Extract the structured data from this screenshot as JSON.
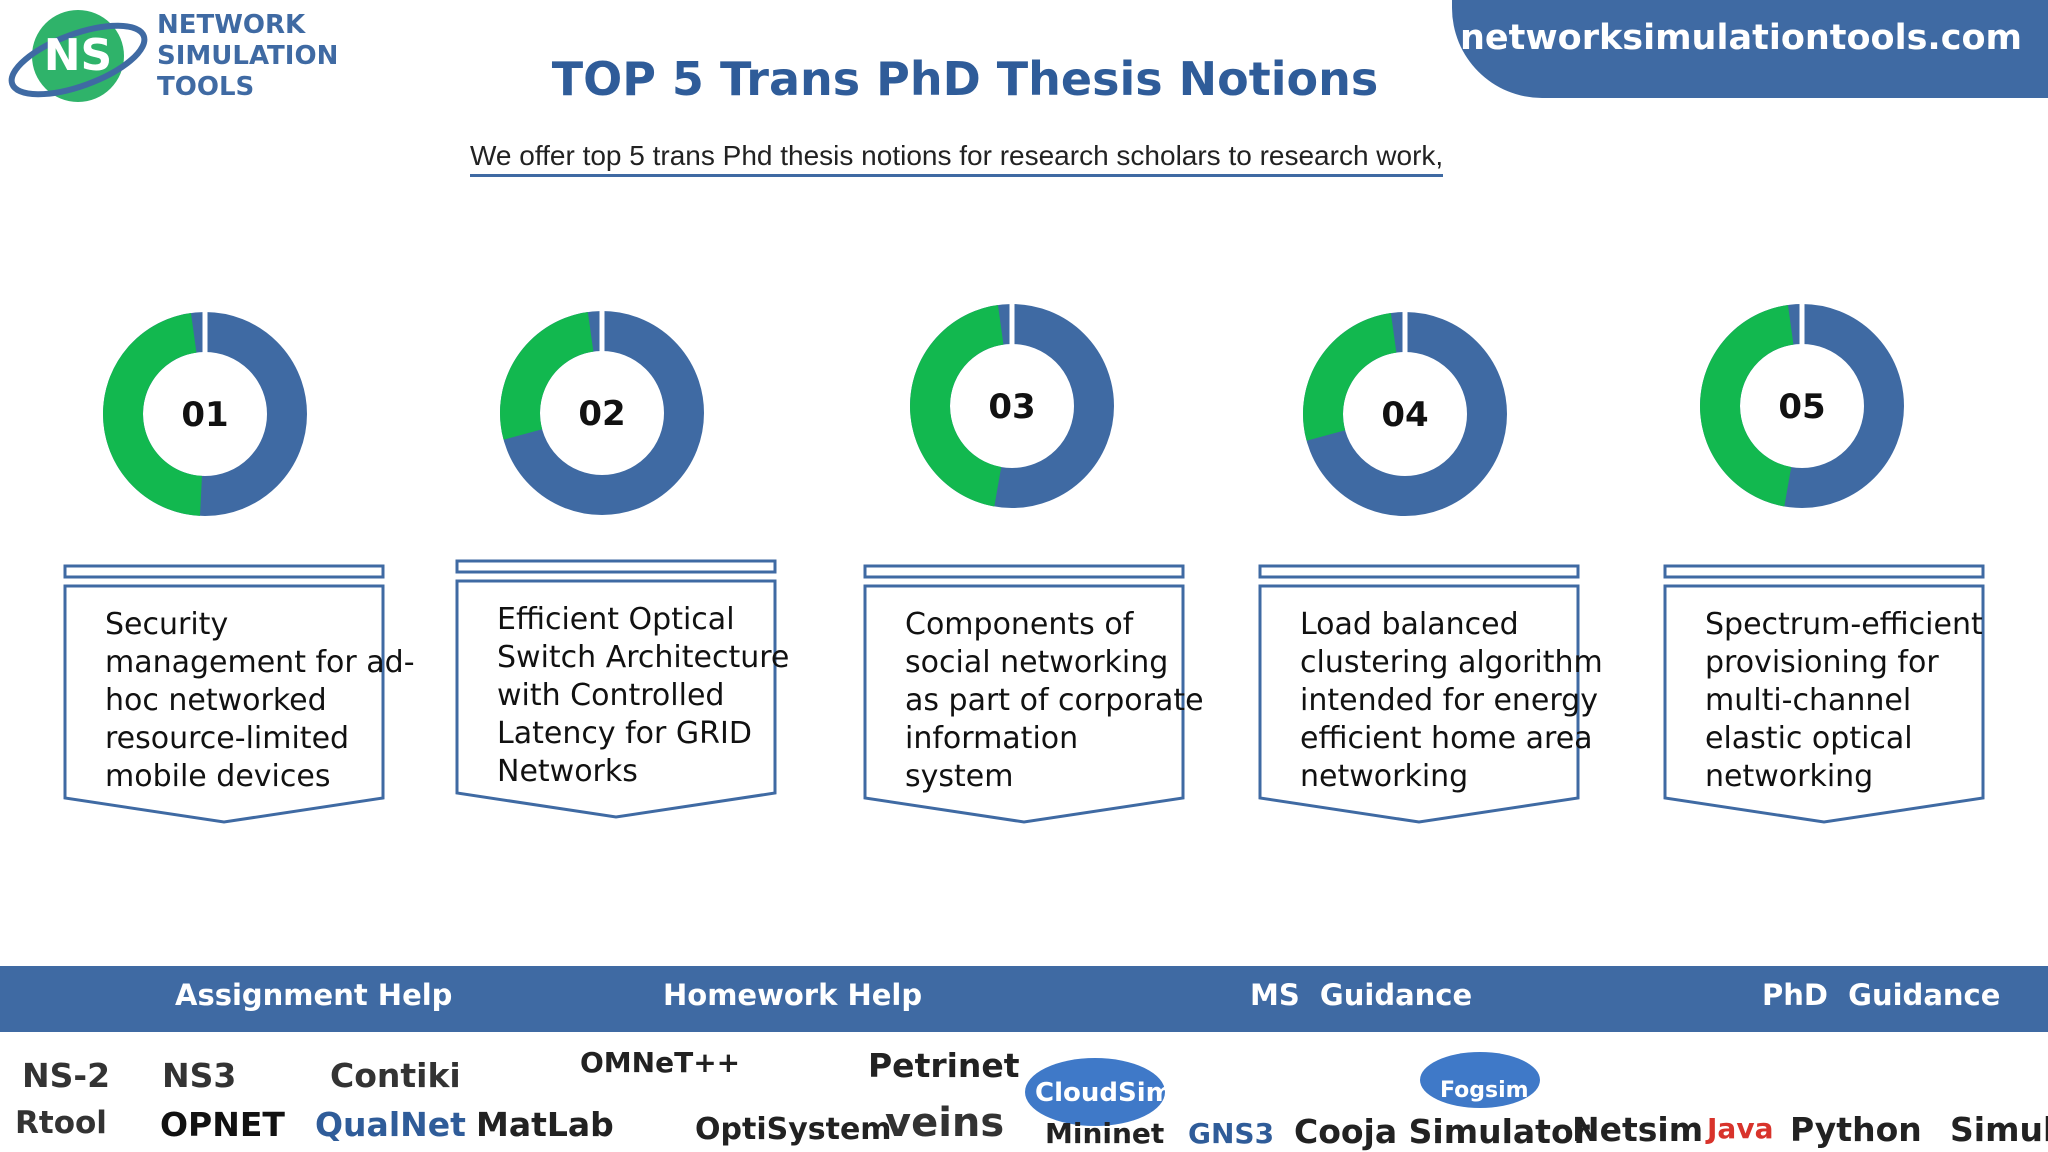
{
  "header": {
    "logo_abbr": "NS",
    "logo_lines": [
      "NETWORK",
      "SIMULATION",
      "TOOLS"
    ],
    "website": "networksimulationtools.com",
    "title": "TOP 5 Trans PhD Thesis Notions",
    "subtitle": "We offer top 5 trans Phd thesis notions for research scholars to research work,"
  },
  "items": [
    {
      "number": "01",
      "lines": [
        "Security",
        "management for ad-",
        "hoc networked",
        "resource-limited",
        "mobile devices"
      ]
    },
    {
      "number": "02",
      "lines": [
        "Efficient Optical",
        "Switch Architecture",
        "with Controlled",
        "Latency for GRID",
        "Networks"
      ]
    },
    {
      "number": "03",
      "lines": [
        "Components of",
        "social networking",
        "as part of corporate",
        "information",
        "system"
      ]
    },
    {
      "number": "04",
      "lines": [
        "Load balanced",
        "clustering algorithm",
        "intended for energy",
        "efficient home area",
        "networking"
      ]
    },
    {
      "number": "05",
      "lines": [
        "Spectrum-efficient",
        "provisioning for",
        "multi-channel",
        "elastic optical",
        "networking"
      ]
    }
  ],
  "services": [
    "Assignment Help",
    "Homework Help",
    "MS  Guidance",
    "PhD  Guidance"
  ],
  "tools": [
    "NS-2",
    "NS3",
    "Contiki",
    "OMNeT++",
    "Petrinet",
    "CloudSim",
    "Fogsim",
    "Rtool",
    "OPNET",
    "QualNet",
    "MatLab",
    "OptiSystem",
    "veins",
    "Mininet",
    "GNS3",
    "Cooja Simulator",
    "Netsim",
    "Java",
    "Python",
    "Simulink"
  ]
}
